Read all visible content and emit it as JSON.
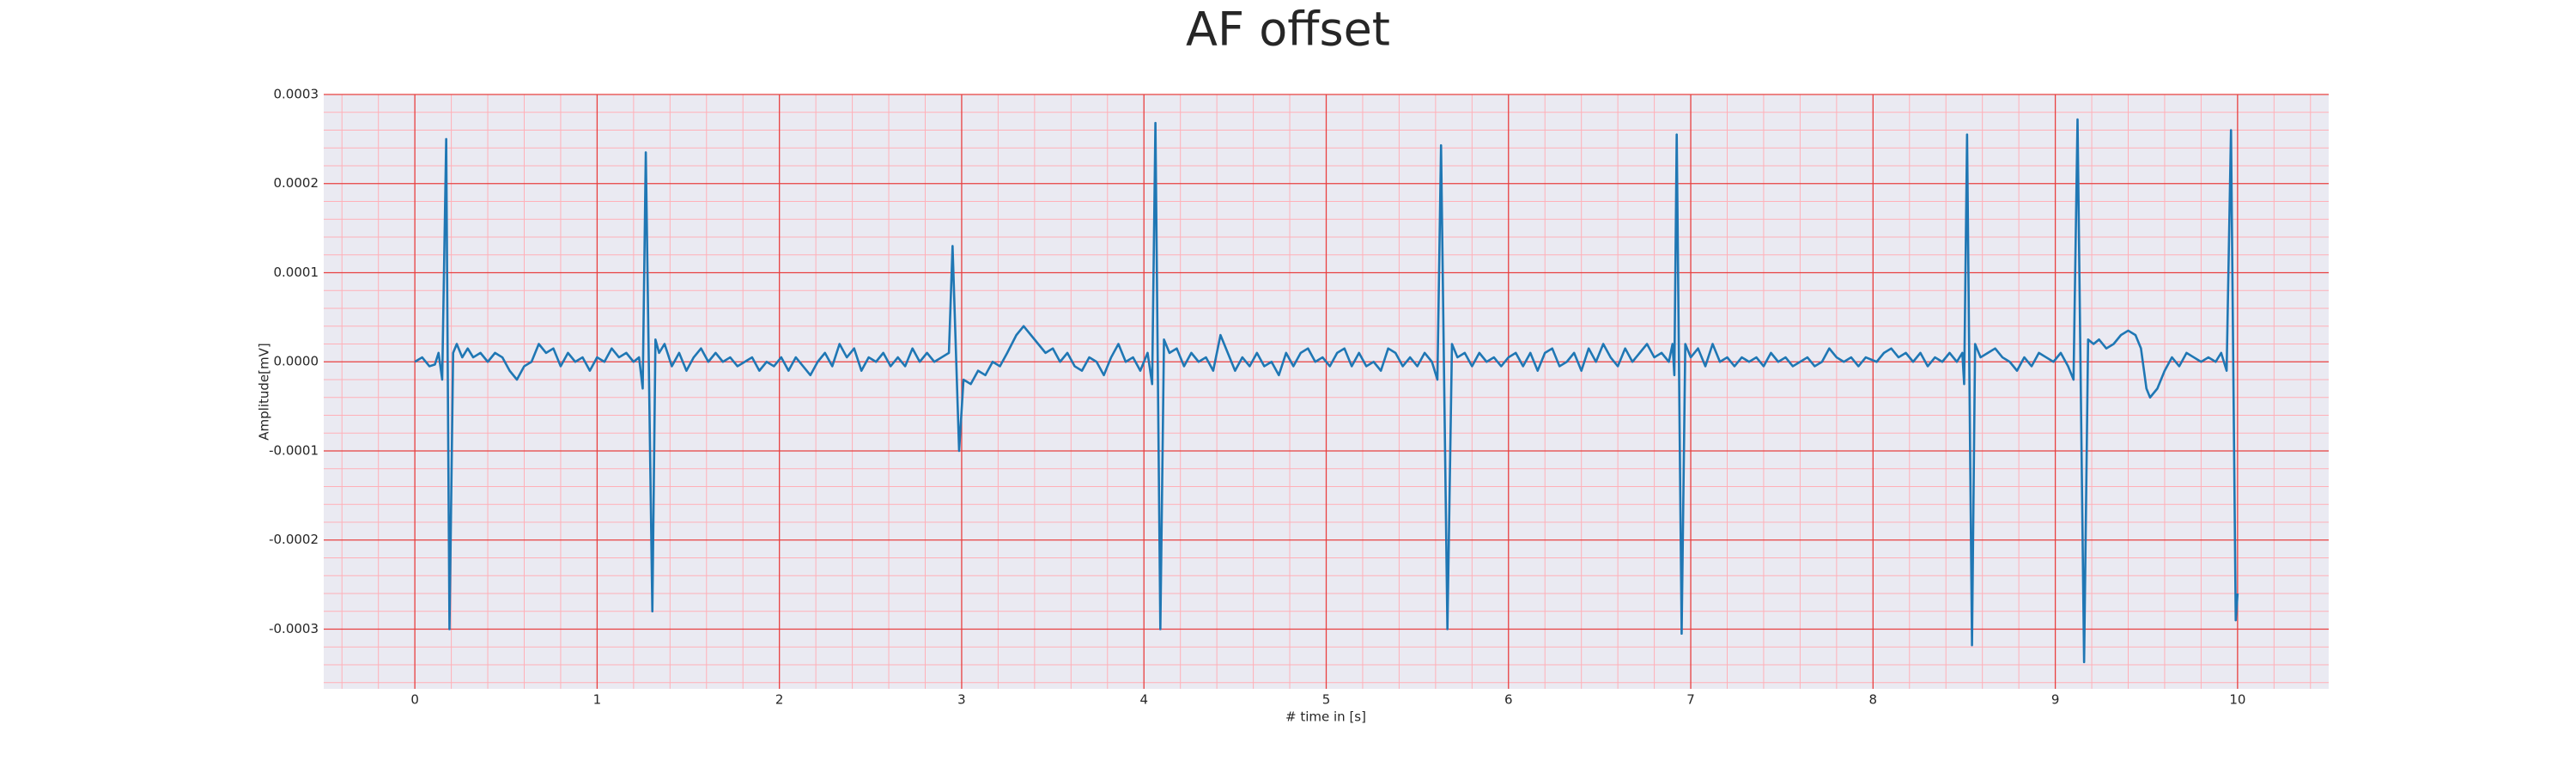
{
  "chart_data": {
    "type": "line",
    "title": "AF offset",
    "x_label": "# time in [s]",
    "y_label": "Amplitude[mV]",
    "color": "#1f77b4",
    "grid": true,
    "xlim": [
      -0.5,
      10.5
    ],
    "xticks": [
      0,
      1,
      2,
      3,
      4,
      5,
      6,
      7,
      8,
      9,
      10
    ],
    "ylim": [
      -0.000367,
      0.0003
    ],
    "yticks": [
      {
        "value": -0.0003,
        "label": "-0.0003"
      },
      {
        "value": -0.0002,
        "label": "-0.0002"
      },
      {
        "value": -0.0001,
        "label": "-0.0001"
      },
      {
        "value": 0,
        "label": "0.0000"
      },
      {
        "value": 0.0001,
        "label": "0.0001"
      },
      {
        "value": 0.0002,
        "label": "0.0002"
      },
      {
        "value": 0.0003,
        "label": "0.0003"
      }
    ],
    "x": [
      0,
      0.04,
      0.08,
      0.11,
      0.13,
      0.15,
      0.172,
      0.19,
      0.21,
      0.23,
      0.26,
      0.29,
      0.32,
      0.36,
      0.4,
      0.44,
      0.48,
      0.52,
      0.56,
      0.6,
      0.64,
      0.68,
      0.72,
      0.76,
      0.8,
      0.84,
      0.88,
      0.92,
      0.96,
      1.0,
      1.04,
      1.08,
      1.12,
      1.16,
      1.2,
      1.23,
      1.25,
      1.267,
      1.303,
      1.32,
      1.34,
      1.37,
      1.41,
      1.45,
      1.49,
      1.53,
      1.57,
      1.61,
      1.65,
      1.69,
      1.73,
      1.77,
      1.81,
      1.85,
      1.89,
      1.93,
      1.97,
      2.01,
      2.05,
      2.09,
      2.13,
      2.17,
      2.21,
      2.25,
      2.29,
      2.33,
      2.37,
      2.41,
      2.45,
      2.49,
      2.53,
      2.57,
      2.61,
      2.65,
      2.69,
      2.73,
      2.77,
      2.81,
      2.85,
      2.89,
      2.93,
      2.95,
      2.986,
      3.01,
      3.05,
      3.09,
      3.13,
      3.17,
      3.21,
      3.25,
      3.3,
      3.34,
      3.38,
      3.42,
      3.46,
      3.5,
      3.54,
      3.58,
      3.62,
      3.66,
      3.7,
      3.74,
      3.78,
      3.82,
      3.86,
      3.9,
      3.94,
      3.98,
      4.02,
      4.045,
      4.063,
      4.09,
      4.11,
      4.14,
      4.18,
      4.22,
      4.26,
      4.3,
      4.34,
      4.38,
      4.42,
      4.46,
      4.5,
      4.54,
      4.58,
      4.62,
      4.66,
      4.7,
      4.74,
      4.78,
      4.82,
      4.86,
      4.9,
      4.94,
      4.98,
      5.02,
      5.06,
      5.1,
      5.14,
      5.18,
      5.22,
      5.26,
      5.3,
      5.34,
      5.38,
      5.42,
      5.46,
      5.5,
      5.54,
      5.58,
      5.61,
      5.63,
      5.665,
      5.69,
      5.72,
      5.76,
      5.8,
      5.84,
      5.88,
      5.92,
      5.96,
      6.0,
      6.04,
      6.08,
      6.12,
      6.16,
      6.2,
      6.24,
      6.28,
      6.32,
      6.36,
      6.4,
      6.44,
      6.48,
      6.52,
      6.56,
      6.6,
      6.64,
      6.68,
      6.72,
      6.76,
      6.8,
      6.84,
      6.88,
      6.9,
      6.91,
      6.923,
      6.95,
      6.97,
      7.0,
      7.04,
      7.08,
      7.12,
      7.16,
      7.2,
      7.24,
      7.28,
      7.32,
      7.36,
      7.4,
      7.44,
      7.48,
      7.52,
      7.56,
      7.6,
      7.64,
      7.68,
      7.72,
      7.76,
      7.8,
      7.84,
      7.88,
      7.92,
      7.96,
      8.02,
      8.06,
      8.1,
      8.14,
      8.18,
      8.22,
      8.26,
      8.3,
      8.34,
      8.38,
      8.42,
      8.46,
      8.49,
      8.5,
      8.516,
      8.543,
      8.56,
      8.59,
      8.63,
      8.67,
      8.71,
      8.75,
      8.79,
      8.83,
      8.87,
      8.91,
      8.95,
      8.99,
      9.03,
      9.07,
      9.1,
      9.122,
      9.158,
      9.18,
      9.21,
      9.24,
      9.28,
      9.32,
      9.36,
      9.4,
      9.44,
      9.47,
      9.5,
      9.52,
      9.56,
      9.6,
      9.64,
      9.68,
      9.72,
      9.76,
      9.8,
      9.84,
      9.88,
      9.91,
      9.94,
      9.964,
      9.99,
      10.0
    ],
    "values": [
      0,
      5e-06,
      -5e-06,
      -3e-06,
      1e-05,
      -2e-05,
      0.00025,
      -0.0003,
      1e-05,
      2e-05,
      5e-06,
      1.5e-05,
      5e-06,
      1e-05,
      0,
      1e-05,
      5e-06,
      -1e-05,
      -2e-05,
      -5e-06,
      0,
      2e-05,
      1e-05,
      1.5e-05,
      -5e-06,
      1e-05,
      0,
      5e-06,
      -1e-05,
      5e-06,
      0,
      1.5e-05,
      5e-06,
      1e-05,
      0,
      5e-06,
      -3e-05,
      0.000235,
      -0.00028,
      2.5e-05,
      1e-05,
      2e-05,
      -5e-06,
      1e-05,
      -1e-05,
      5e-06,
      1.5e-05,
      0,
      1e-05,
      0,
      5e-06,
      -5e-06,
      0,
      5e-06,
      -1e-05,
      0,
      -5e-06,
      5e-06,
      -1e-05,
      5e-06,
      -5e-06,
      -1.5e-05,
      0,
      1e-05,
      -5e-06,
      2e-05,
      5e-06,
      1.5e-05,
      -1e-05,
      5e-06,
      0,
      1e-05,
      -5e-06,
      5e-06,
      -5e-06,
      1.5e-05,
      0,
      1e-05,
      0,
      5e-06,
      1e-05,
      0.00013,
      -0.0001,
      -2e-05,
      -2.5e-05,
      -1e-05,
      -1.5e-05,
      0,
      -5e-06,
      1e-05,
      3e-05,
      4e-05,
      3e-05,
      2e-05,
      1e-05,
      1.5e-05,
      0,
      1e-05,
      -5e-06,
      -1e-05,
      5e-06,
      0,
      -1.5e-05,
      5e-06,
      2e-05,
      0,
      5e-06,
      -1e-05,
      1e-05,
      -2.5e-05,
      0.000268,
      -0.0003,
      2.5e-05,
      1e-05,
      1.5e-05,
      -5e-06,
      1e-05,
      0,
      5e-06,
      -1e-05,
      3e-05,
      1e-05,
      -1e-05,
      5e-06,
      -5e-06,
      1e-05,
      -5e-06,
      0,
      -1.5e-05,
      1e-05,
      -5e-06,
      1e-05,
      1.5e-05,
      0,
      5e-06,
      -5e-06,
      1e-05,
      1.5e-05,
      -5e-06,
      1e-05,
      -5e-06,
      0,
      -1e-05,
      1.5e-05,
      1e-05,
      -5e-06,
      5e-06,
      -5e-06,
      1e-05,
      0,
      -2e-05,
      0.000243,
      -0.0003,
      2e-05,
      5e-06,
      1e-05,
      -5e-06,
      1e-05,
      0,
      5e-06,
      -5e-06,
      5e-06,
      1e-05,
      -5e-06,
      1e-05,
      -1e-05,
      1e-05,
      1.5e-05,
      -5e-06,
      0,
      1e-05,
      -1e-05,
      1.5e-05,
      0,
      2e-05,
      5e-06,
      -5e-06,
      1.5e-05,
      0,
      1e-05,
      2e-05,
      5e-06,
      1e-05,
      0,
      2e-05,
      -1.5e-05,
      0.000255,
      -0.000305,
      2e-05,
      5e-06,
      1.5e-05,
      -5e-06,
      2e-05,
      0,
      5e-06,
      -5e-06,
      5e-06,
      0,
      5e-06,
      -5e-06,
      1e-05,
      0,
      5e-06,
      -5e-06,
      0,
      5e-06,
      -5e-06,
      0,
      1.5e-05,
      5e-06,
      0,
      5e-06,
      -5e-06,
      5e-06,
      0,
      1e-05,
      1.5e-05,
      5e-06,
      1e-05,
      0,
      1e-05,
      -5e-06,
      5e-06,
      0,
      1e-05,
      0,
      1e-05,
      -2.5e-05,
      0.000255,
      -0.000318,
      2e-05,
      5e-06,
      1e-05,
      1.5e-05,
      5e-06,
      0,
      -1e-05,
      5e-06,
      -5e-06,
      1e-05,
      5e-06,
      0,
      1e-05,
      -5e-06,
      -2e-05,
      0.000272,
      -0.000337,
      2.5e-05,
      2e-05,
      2.5e-05,
      1.5e-05,
      2e-05,
      3e-05,
      3.5e-05,
      3e-05,
      1.5e-05,
      -3e-05,
      -4e-05,
      -3e-05,
      -1e-05,
      5e-06,
      -5e-06,
      1e-05,
      5e-06,
      0,
      5e-06,
      0,
      1e-05,
      -1e-05,
      0.00026,
      -0.00029,
      -0.00026
    ]
  }
}
